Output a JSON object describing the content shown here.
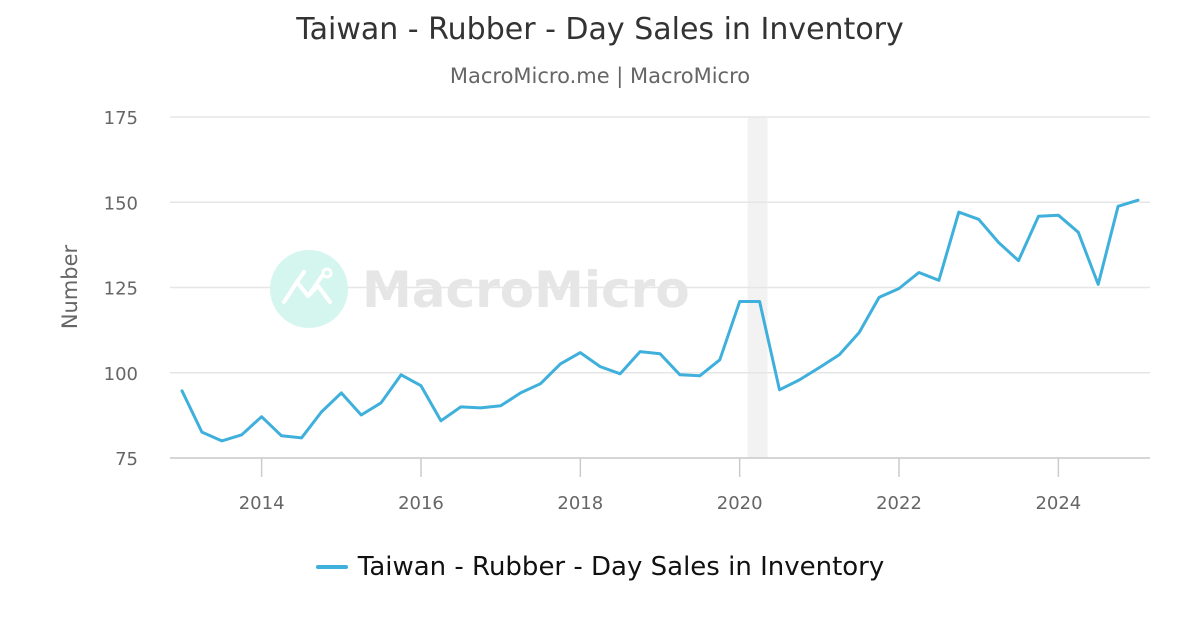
{
  "header": {
    "title": "Taiwan - Rubber - Day Sales in Inventory",
    "subtitle": "MacroMicro.me | MacroMicro"
  },
  "watermark": {
    "text": "MacroMicro"
  },
  "legend": {
    "items": [
      {
        "label": "Taiwan - Rubber - Day Sales in Inventory",
        "color": "#3fb0db"
      }
    ]
  },
  "colors": {
    "series": "#3fb0db",
    "grid": "#e6e6e6",
    "recession": "#f2f2f2",
    "watermark_circle": "#d5f5ef",
    "watermark_text": "#e6e6e6"
  },
  "chart_data": {
    "type": "line",
    "title": "Taiwan - Rubber - Day Sales in Inventory",
    "subtitle": "MacroMicro.me | MacroMicro",
    "xlabel": "",
    "ylabel": "Number",
    "ylim": [
      75,
      175
    ],
    "yticks": [
      75,
      100,
      125,
      150,
      175
    ],
    "xticks": [
      "2014",
      "2016",
      "2018",
      "2020",
      "2022",
      "2024"
    ],
    "xlim": [
      2012.85,
      2025.15
    ],
    "grid": true,
    "legend_position": "bottom",
    "shaded_regions": [
      {
        "from": 2020.1,
        "to": 2020.35,
        "label": "recession"
      }
    ],
    "x": [
      "2013Q1",
      "2013Q2",
      "2013Q3",
      "2013Q4",
      "2014Q1",
      "2014Q2",
      "2014Q3",
      "2014Q4",
      "2015Q1",
      "2015Q2",
      "2015Q3",
      "2015Q4",
      "2016Q1",
      "2016Q2",
      "2016Q3",
      "2016Q4",
      "2017Q1",
      "2017Q2",
      "2017Q3",
      "2017Q4",
      "2018Q1",
      "2018Q2",
      "2018Q3",
      "2018Q4",
      "2019Q1",
      "2019Q2",
      "2019Q3",
      "2019Q4",
      "2020Q1",
      "2020Q2",
      "2020Q3",
      "2020Q4",
      "2021Q1",
      "2021Q2",
      "2021Q3",
      "2021Q4",
      "2022Q1",
      "2022Q2",
      "2022Q3",
      "2022Q4",
      "2023Q1",
      "2023Q2",
      "2023Q3",
      "2023Q4",
      "2024Q1",
      "2024Q2",
      "2024Q3",
      "2024Q4",
      "2025Q1"
    ],
    "series": [
      {
        "name": "Taiwan - Rubber - Day Sales in Inventory",
        "color": "#3fb0db",
        "values": [
          94.7,
          82.6,
          80.0,
          81.8,
          87.1,
          81.5,
          80.9,
          88.5,
          94.1,
          87.6,
          91.2,
          99.4,
          96.2,
          85.9,
          90.0,
          89.7,
          90.3,
          94.1,
          96.8,
          102.6,
          105.9,
          101.8,
          99.7,
          106.2,
          105.6,
          99.4,
          99.1,
          103.8,
          120.9,
          120.9,
          95.0,
          97.9,
          101.5,
          105.3,
          111.8,
          122.1,
          124.7,
          129.4,
          127.1,
          147.1,
          145.0,
          138.2,
          132.9,
          145.9,
          146.2,
          141.2,
          125.9,
          148.8,
          150.6
        ]
      }
    ]
  }
}
